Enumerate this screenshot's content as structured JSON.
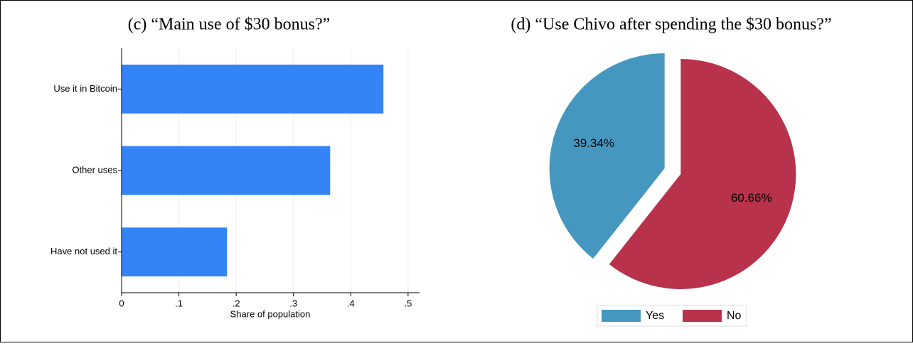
{
  "chart_data": [
    {
      "type": "hbar",
      "title": "(c) “Main use of $30 bonus?”",
      "x_label": "Share of population",
      "categories": [
        "Use it in Bitcoin",
        "Other uses",
        "Have not used it"
      ],
      "values": [
        0.457,
        0.364,
        0.184
      ],
      "color": "#3484f7",
      "xlim": [
        0,
        0.52
      ],
      "xticks": [
        0,
        {
          "value": 0.1,
          "label": ".1"
        },
        {
          "value": 0.2,
          "label": ".2"
        },
        {
          "value": 0.3,
          "label": ".3"
        },
        {
          "value": 0.4,
          "label": ".4"
        },
        {
          "value": 0.5,
          "label": ".5"
        }
      ],
      "grid": true
    },
    {
      "type": "pie",
      "title": "(d) “Use Chivo after spending the $30 bonus?”",
      "categories": [
        "Yes",
        "No"
      ],
      "values": [
        39.34,
        60.66
      ],
      "value_labels": [
        "39.34%",
        "60.66%"
      ],
      "colors": [
        "#4597c0",
        "#b8324b"
      ],
      "legend": "bottom"
    }
  ]
}
